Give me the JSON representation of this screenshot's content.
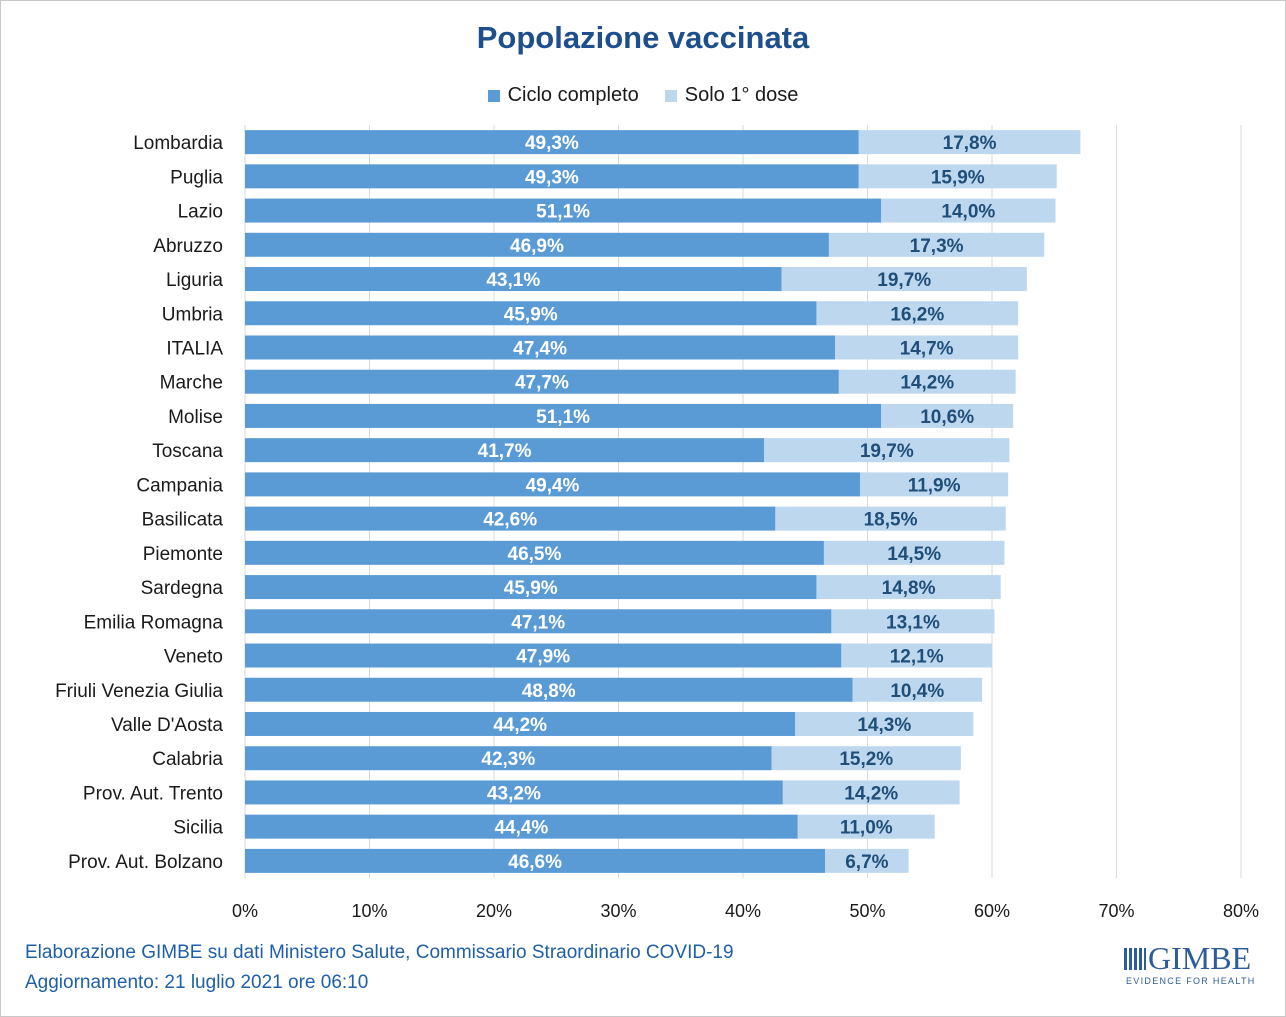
{
  "chart_data": {
    "type": "bar",
    "orientation": "horizontal",
    "stacked": true,
    "title": "Popolazione vaccinata",
    "categories": [
      "Lombardia",
      "Puglia",
      "Lazio",
      "Abruzzo",
      "Liguria",
      "Umbria",
      "ITALIA",
      "Marche",
      "Molise",
      "Toscana",
      "Campania",
      "Basilicata",
      "Piemonte",
      "Sardegna",
      "Emilia Romagna",
      "Veneto",
      "Friuli Venezia Giulia",
      "Valle D'Aosta",
      "Calabria",
      "Prov. Aut. Trento",
      "Sicilia",
      "Prov. Aut. Bolzano"
    ],
    "series": [
      {
        "name": "Ciclo completo",
        "color": "#5b9bd5",
        "values": [
          49.3,
          49.3,
          51.1,
          46.9,
          43.1,
          45.9,
          47.4,
          47.7,
          51.1,
          41.7,
          49.4,
          42.6,
          46.5,
          45.9,
          47.1,
          47.9,
          48.8,
          44.2,
          42.3,
          43.2,
          44.4,
          46.6
        ],
        "labels": [
          "49,3%",
          "49,3%",
          "51,1%",
          "46,9%",
          "43,1%",
          "45,9%",
          "47,4%",
          "47,7%",
          "51,1%",
          "41,7%",
          "49,4%",
          "42,6%",
          "46,5%",
          "45,9%",
          "47,1%",
          "47,9%",
          "48,8%",
          "44,2%",
          "42,3%",
          "43,2%",
          "44,4%",
          "46,6%"
        ]
      },
      {
        "name": "Solo 1° dose",
        "color": "#bdd7ee",
        "values": [
          17.8,
          15.9,
          14.0,
          17.3,
          19.7,
          16.2,
          14.7,
          14.2,
          10.6,
          19.7,
          11.9,
          18.5,
          14.5,
          14.8,
          13.1,
          12.1,
          10.4,
          14.3,
          15.2,
          14.2,
          11.0,
          6.7
        ],
        "labels": [
          "17,8%",
          "15,9%",
          "14,0%",
          "17,3%",
          "19,7%",
          "16,2%",
          "14,7%",
          "14,2%",
          "10,6%",
          "19,7%",
          "11,9%",
          "18,5%",
          "14,5%",
          "14,8%",
          "13,1%",
          "12,1%",
          "10,4%",
          "14,3%",
          "15,2%",
          "14,2%",
          "11,0%",
          "6,7%"
        ]
      }
    ],
    "xlim": [
      0,
      80
    ],
    "x_ticks": [
      "0%",
      "10%",
      "20%",
      "30%",
      "40%",
      "50%",
      "60%",
      "70%",
      "80%"
    ],
    "grid": true,
    "legend_position": "top"
  },
  "footer": {
    "line1": "Elaborazione GIMBE su dati Ministero Salute, Commissario Straordinario COVID-19",
    "line2": "Aggiornamento: 21 luglio 2021 ore 06:10"
  },
  "logo": {
    "name": "GIMBE",
    "tagline": "EVIDENCE FOR HEALTH"
  }
}
